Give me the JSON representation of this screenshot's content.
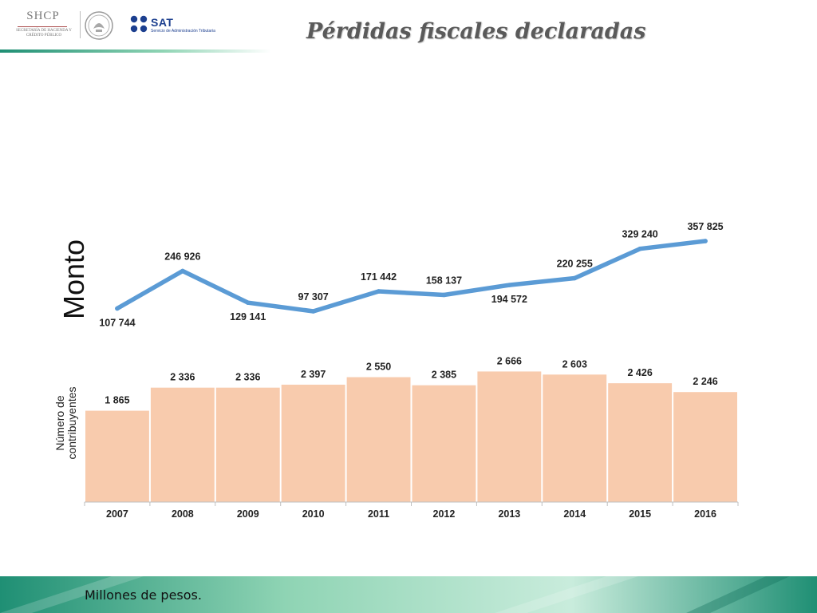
{
  "header": {
    "shcp_logo_text": "SHCP",
    "shcp_logo_subtitle": "SECRETARÍA DE HACIENDA Y CRÉDITO PÚBLICO",
    "sat_logo_text": "SAT",
    "sat_logo_subtitle": "Servicio de Administración Tributaria"
  },
  "title": "Pérdidas fiscales declaradas",
  "footnote": "Millones de pesos.",
  "colors": {
    "line": "#5b9bd5",
    "bar": "#f8cbad",
    "band_light": "#8fd4b4",
    "band_dark": "#1f8f74"
  },
  "chart_data": [
    {
      "type": "line",
      "ylabel": "Monto",
      "x": [
        "2007",
        "2008",
        "2009",
        "2010",
        "2011",
        "2012",
        "2013",
        "2014",
        "2015",
        "2016"
      ],
      "values": [
        107744,
        246926,
        129141,
        97307,
        171442,
        158137,
        194572,
        220255,
        329240,
        357825
      ],
      "data_labels": [
        "107 744",
        "246 926",
        "129 141",
        "97 307",
        "171 442",
        "158 137",
        "194 572",
        "220 255",
        "329 240",
        "357 825"
      ]
    },
    {
      "type": "bar",
      "ylabel": "Número de contribuyentes",
      "categories": [
        "2007",
        "2008",
        "2009",
        "2010",
        "2011",
        "2012",
        "2013",
        "2014",
        "2015",
        "2016"
      ],
      "values": [
        1865,
        2336,
        2336,
        2397,
        2550,
        2385,
        2666,
        2603,
        2426,
        2246
      ],
      "data_labels": [
        "1 865",
        "2 336",
        "2 336",
        "2 397",
        "2 550",
        "2 385",
        "2 666",
        "2 603",
        "2 426",
        "2 246"
      ],
      "ylim": [
        0,
        2950
      ]
    }
  ]
}
